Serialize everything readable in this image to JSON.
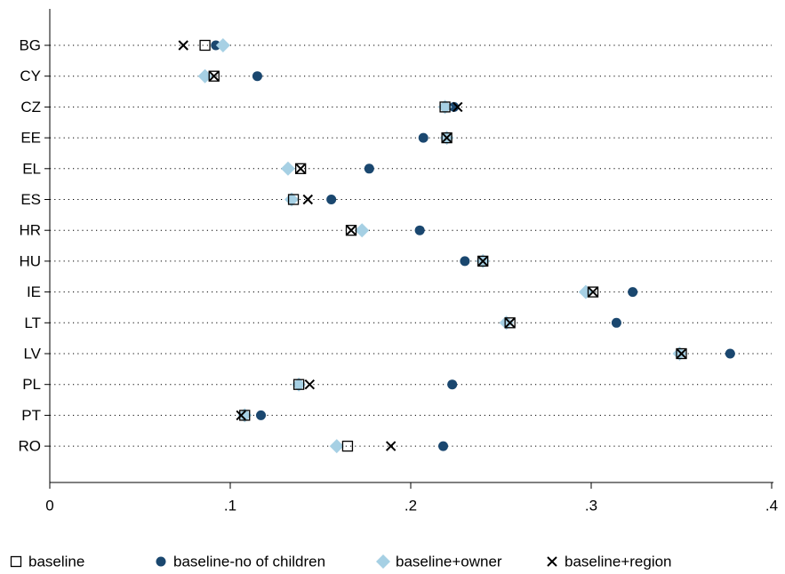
{
  "chart_data": {
    "type": "dot",
    "categories": [
      "BG",
      "CY",
      "CZ",
      "EE",
      "EL",
      "ES",
      "HR",
      "HU",
      "IE",
      "LT",
      "LV",
      "PL",
      "PT",
      "RO"
    ],
    "series": [
      {
        "name": "baseline",
        "color": "#000000",
        "marker": "square",
        "values": [
          0.086,
          0.091,
          0.219,
          0.22,
          0.139,
          0.135,
          0.167,
          0.24,
          0.301,
          0.255,
          0.35,
          0.138,
          0.108,
          0.165
        ]
      },
      {
        "name": "baseline-no of children",
        "color": "#1a476f",
        "marker": "circle",
        "values": [
          0.092,
          0.115,
          0.224,
          0.207,
          0.177,
          0.156,
          0.205,
          0.23,
          0.323,
          0.314,
          0.377,
          0.223,
          0.117,
          0.218
        ]
      },
      {
        "name": "baseline+owner",
        "color": "#a6d0e4",
        "marker": "diamond",
        "values": [
          0.096,
          0.086,
          0.219,
          0.22,
          0.132,
          0.134,
          0.173,
          0.24,
          0.297,
          0.253,
          0.349,
          0.138,
          0.108,
          0.159
        ]
      },
      {
        "name": "baseline+region",
        "color": "#000000",
        "marker": "x",
        "values": [
          0.074,
          0.091,
          0.226,
          0.22,
          0.139,
          0.143,
          0.167,
          0.24,
          0.301,
          0.255,
          0.35,
          0.144,
          0.106,
          0.189
        ]
      }
    ],
    "xlim": [
      0,
      0.4
    ],
    "xticks": [
      0,
      {
        "value": 0.1,
        "label": ".1"
      },
      {
        "value": 0.2,
        "label": ".2"
      },
      {
        "value": 0.3,
        "label": ".3"
      },
      {
        "value": 0.4,
        "label": ".4"
      }
    ],
    "legend": "bottom"
  }
}
